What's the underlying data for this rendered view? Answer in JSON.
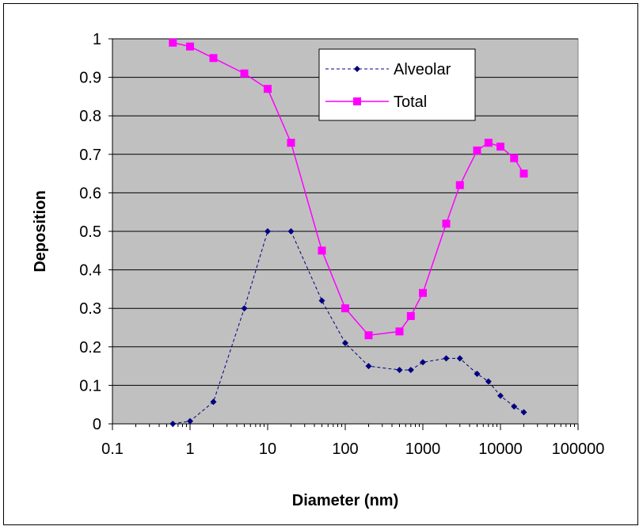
{
  "chart_data": {
    "type": "line",
    "xlabel": "Diameter (nm)",
    "ylabel": "Deposition",
    "xscale": "log",
    "xlim": [
      0.1,
      100000
    ],
    "ylim": [
      0,
      1
    ],
    "x_ticks": [
      0.1,
      1,
      10,
      100,
      1000,
      10000,
      100000
    ],
    "x_tick_labels": [
      "0.1",
      "1",
      "10",
      "100",
      "1000",
      "10000",
      "100000"
    ],
    "y_ticks": [
      0,
      0.1,
      0.2,
      0.3,
      0.4,
      0.5,
      0.6,
      0.7,
      0.8,
      0.9,
      1
    ],
    "y_tick_labels": [
      "0",
      "0.1",
      "0.2",
      "0.3",
      "0.4",
      "0.5",
      "0.6",
      "0.7",
      "0.8",
      "0.9",
      "1"
    ],
    "grid": "horizontal",
    "plot_background": "#c0c0c0",
    "legend_position": "top-right",
    "series": [
      {
        "name": "Alveolar",
        "color": "#000080",
        "line_style": "dashed",
        "marker": "diamond",
        "x": [
          0.6,
          1,
          2,
          5,
          10,
          20,
          50,
          100,
          200,
          500,
          700,
          1000,
          2000,
          3000,
          5000,
          7000,
          10000,
          15000,
          20000
        ],
        "y": [
          0,
          0.007,
          0.057,
          0.3,
          0.5,
          0.5,
          0.32,
          0.21,
          0.15,
          0.14,
          0.14,
          0.16,
          0.17,
          0.17,
          0.13,
          0.11,
          0.073,
          0.045,
          0.03
        ]
      },
      {
        "name": "Total",
        "color": "#ff00ff",
        "line_style": "solid",
        "marker": "square",
        "x": [
          0.6,
          1,
          2,
          5,
          10,
          20,
          50,
          100,
          200,
          500,
          700,
          1000,
          2000,
          3000,
          5000,
          7000,
          10000,
          15000,
          20000
        ],
        "y": [
          0.99,
          0.98,
          0.95,
          0.91,
          0.87,
          0.73,
          0.45,
          0.3,
          0.23,
          0.24,
          0.28,
          0.34,
          0.52,
          0.62,
          0.71,
          0.73,
          0.72,
          0.69,
          0.65
        ]
      }
    ]
  }
}
